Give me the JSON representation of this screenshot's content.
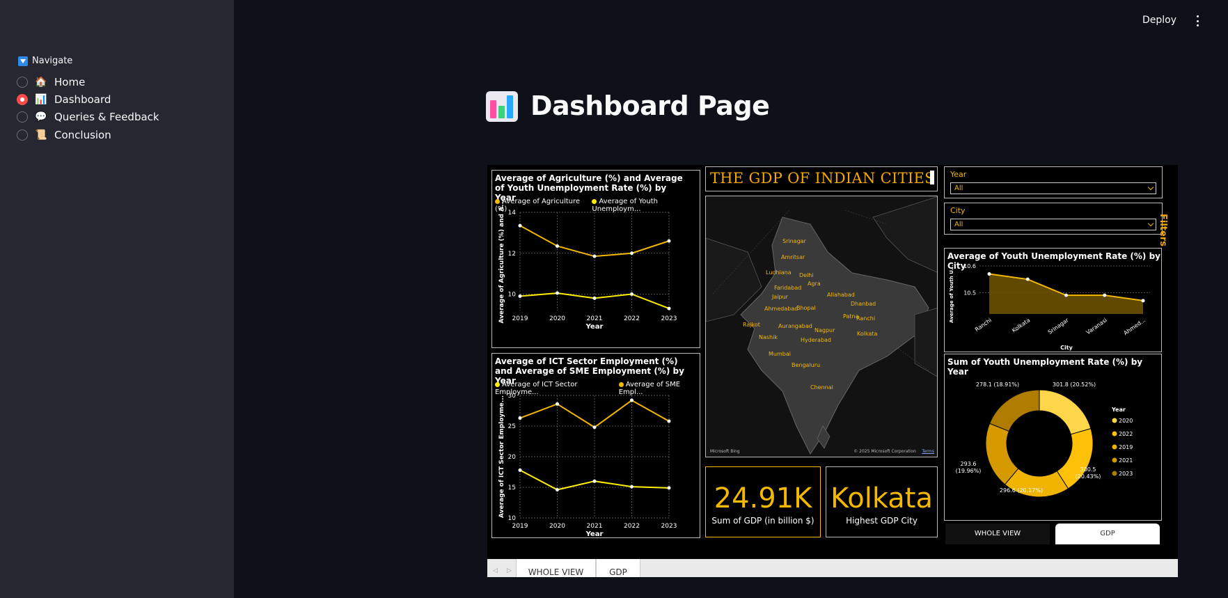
{
  "sidebar": {
    "title": "Navigate",
    "items": [
      {
        "label": "Home",
        "icon": "🏠",
        "selected": false
      },
      {
        "label": "Dashboard",
        "icon": "📊",
        "selected": true
      },
      {
        "label": "Queries & Feedback",
        "icon": "💬",
        "selected": false
      },
      {
        "label": "Conclusion",
        "icon": "📜",
        "selected": false
      }
    ]
  },
  "topbar": {
    "deploy_label": "Deploy"
  },
  "page": {
    "title": "Dashboard Page"
  },
  "report": {
    "gdp_title": "THE GDP OF INDIAN CITIES",
    "filters_label": "Filters",
    "year_filter": {
      "label": "Year",
      "value": "All"
    },
    "city_filter": {
      "label": "City",
      "value": "All"
    },
    "kpi_gdp": {
      "value": "24.91K",
      "label": "Sum of GDP (in billion $)"
    },
    "kpi_city": {
      "value": "Kolkata",
      "label": "Highest GDP City"
    },
    "buttons": {
      "whole_view": "WHOLE VIEW",
      "gdp": "GDP"
    },
    "page_tabs": [
      "WHOLE VIEW",
      "GDP"
    ],
    "map_credit_left": "Microsoft Bing",
    "map_credit_right": "© 2025 Microsoft Corporation",
    "map_credit_terms": "Terms",
    "map_cities": [
      "Srinagar",
      "Amritsar",
      "Ludhiana",
      "Delhi",
      "Agra",
      "Faridabad",
      "Jaipur",
      "Allahabad",
      "Dhanbad",
      "Ahmedabad",
      "Bhopal",
      "Patna",
      "Ranchi",
      "Rajkot",
      "Aurangabad",
      "Nagpur",
      "Kolkata",
      "Nashik",
      "Hyderabad",
      "Mumbai",
      "Bengaluru",
      "Chennai"
    ]
  },
  "chart_data": [
    {
      "type": "line",
      "title": "Average of Agriculture (%) and Average of Youth Unemployment Rate (%) by Year",
      "xlabel": "Year",
      "ylabel": "Average of Agriculture (%) and A...",
      "x": [
        "2019",
        "2020",
        "2021",
        "2022",
        "2023"
      ],
      "ylim": [
        9.2,
        14
      ],
      "yticks": [
        "14",
        "12",
        "10"
      ],
      "legend": [
        "Average of Agriculture (%)",
        "Average of Youth Unemploym..."
      ],
      "series": [
        {
          "name": "Average of Agriculture (%)",
          "color": "#f5b800",
          "values": [
            13.35,
            12.35,
            11.85,
            12.0,
            12.6
          ]
        },
        {
          "name": "Average of Youth Unemploym...",
          "color": "#ffee00",
          "values": [
            9.9,
            10.05,
            9.8,
            10.0,
            9.3
          ]
        }
      ]
    },
    {
      "type": "line",
      "title": "Average of ICT Sector Employment (%) and Average of SME Employment (%) by Year",
      "xlabel": "Year",
      "ylabel": "Average of ICT Sector Employme...",
      "x": [
        "2019",
        "2020",
        "2021",
        "2022",
        "2023"
      ],
      "ylim": [
        10,
        30
      ],
      "yticks": [
        "30",
        "25",
        "20",
        "15",
        "10"
      ],
      "legend": [
        "Average of ICT Sector Employme...",
        "Average of SME Empl..."
      ],
      "series": [
        {
          "name": "Average of SME Empl...",
          "color": "#f5b800",
          "values": [
            26.3,
            28.6,
            24.8,
            29.2,
            25.8
          ]
        },
        {
          "name": "Average of ICT Sector Employme...",
          "color": "#ffee00",
          "values": [
            17.8,
            14.6,
            16.0,
            15.1,
            14.9
          ]
        }
      ]
    },
    {
      "type": "area",
      "title": "Average of Youth Unemployment Rate (%) by City",
      "xlabel": "City",
      "ylabel": "Average of Youth U...",
      "categories": [
        "Ranchi",
        "Kolkata",
        "Srinagar",
        "Varanasi",
        "Ahmed..."
      ],
      "ylim": [
        10.42,
        10.6
      ],
      "yticks": [
        "10.6",
        "10.5"
      ],
      "series": [
        {
          "name": "Average of Youth Unemployment Rate (%)",
          "color": "#f5b800",
          "values": [
            10.57,
            10.55,
            10.49,
            10.49,
            10.47
          ]
        }
      ]
    },
    {
      "type": "pie",
      "title": "Sum of Youth Unemployment Rate (%) by Year",
      "legend_title": "Year",
      "categories": [
        "2020",
        "2022",
        "2019",
        "2021",
        "2023"
      ],
      "values": [
        301.8,
        300.5,
        296.6,
        293.6,
        278.1
      ],
      "labels": [
        "301.8 (20.52%)",
        "300.5 (20.43%)",
        "296.6 (20.17%)",
        "293.6 (19.96%)",
        "278.1 (18.91%)"
      ],
      "colors": [
        "#ffd54a",
        "#ffc107",
        "#f0b400",
        "#d49a00",
        "#b07c00"
      ]
    }
  ]
}
